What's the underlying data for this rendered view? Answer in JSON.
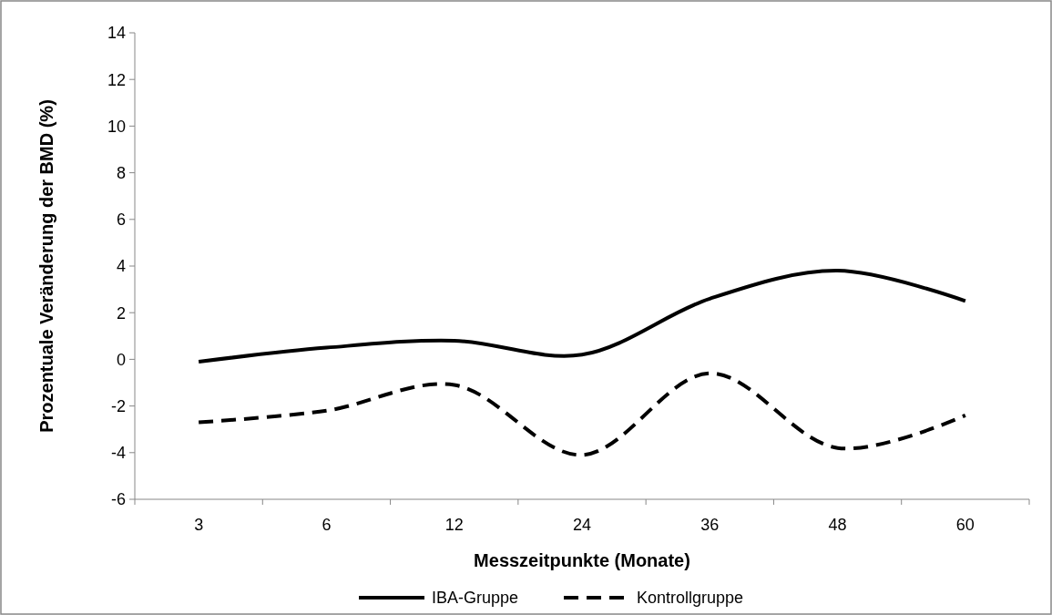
{
  "chart_data": {
    "type": "line",
    "xlabel": "Messzeitpunkte (Monate)",
    "ylabel": "Prozentuale Veränderung der BMD (%)",
    "categories": [
      "3",
      "6",
      "12",
      "24",
      "36",
      "48",
      "60"
    ],
    "series": [
      {
        "name": "IBA-Gruppe",
        "color": "#000000",
        "line_style": "solid",
        "values": [
          -0.1,
          0.5,
          0.8,
          0.2,
          2.6,
          3.8,
          2.5
        ]
      },
      {
        "name": "Kontrollgruppe",
        "color": "#000000",
        "line_style": "dashed",
        "values": [
          -2.7,
          -2.2,
          -1.1,
          -4.1,
          -0.6,
          -3.8,
          -2.4
        ]
      }
    ],
    "ylim": [
      -6,
      14
    ],
    "yticks": [
      -6,
      -4,
      -2,
      0,
      2,
      4,
      6,
      8,
      10,
      12,
      14
    ],
    "grid": false,
    "legend": "bottom",
    "marker": "none"
  }
}
